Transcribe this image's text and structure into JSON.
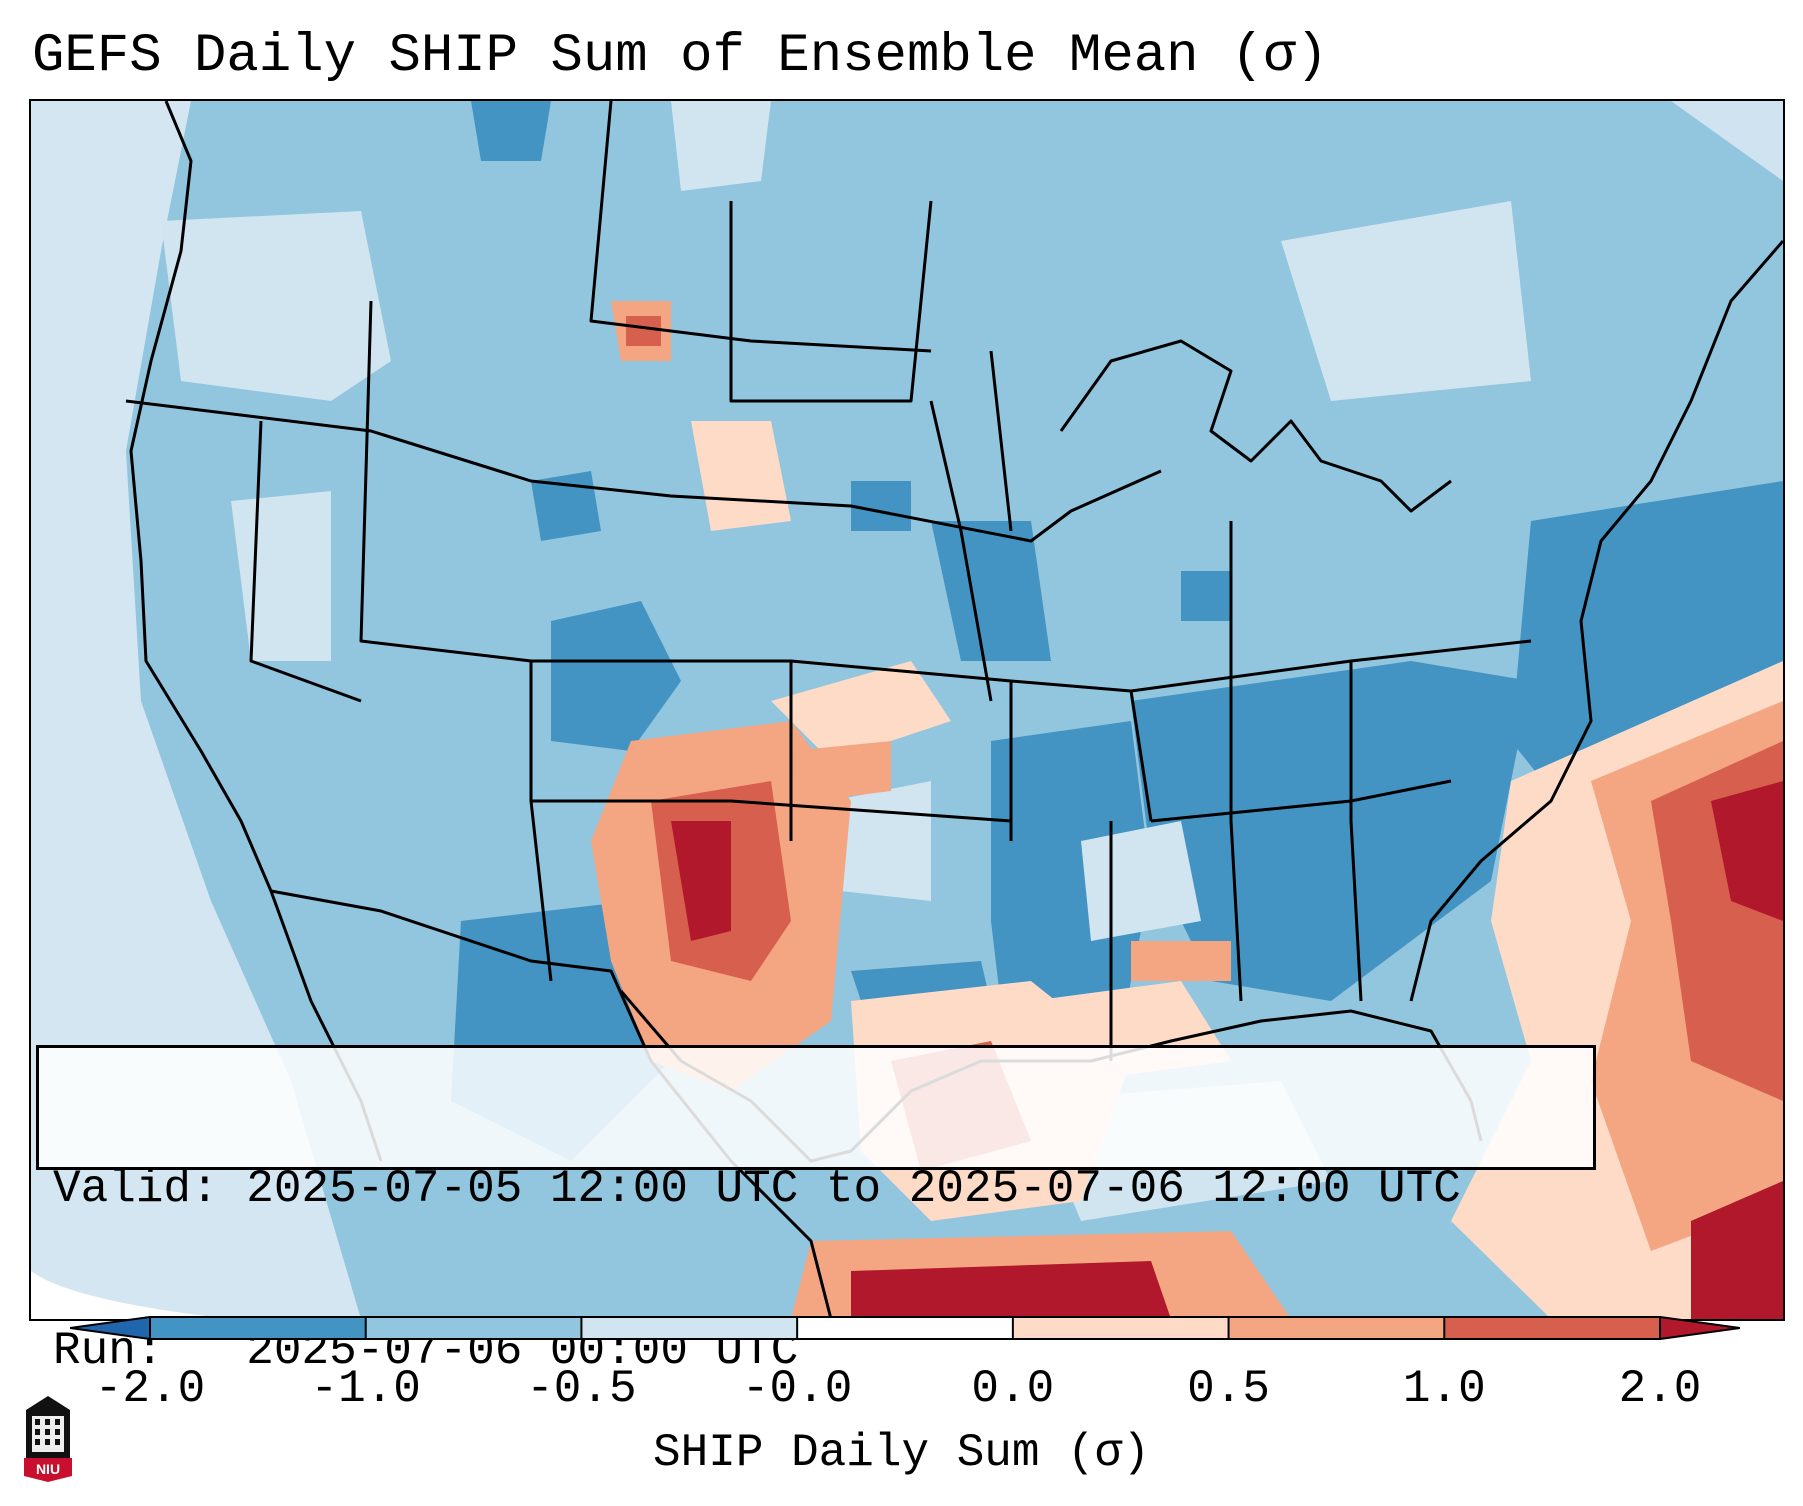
{
  "title": "GEFS Daily SHIP Sum of Ensemble Mean (σ)",
  "info": {
    "valid_label": "Valid:",
    "valid_value": "2025-07-05 12:00 UTC to 2025-07-06 12:00 UTC",
    "run_label": "Run:",
    "run_value": "2025-07-06 00:00 UTC"
  },
  "colorbar": {
    "label": "SHIP Daily Sum (σ)",
    "ticks": [
      "-2.0",
      "-1.0",
      "-0.5",
      "-0.0",
      "0.0",
      "0.5",
      "1.0",
      "2.0"
    ],
    "colors": [
      "#4393c3",
      "#92c5de",
      "#d1e5f0",
      "#fddbc7",
      "#f4a582",
      "#d6604d"
    ],
    "under_color": "#2166ac",
    "over_color": "#b2182b",
    "extend": "both"
  },
  "logo": {
    "text": "NIU",
    "icon": "university-building-icon"
  }
}
